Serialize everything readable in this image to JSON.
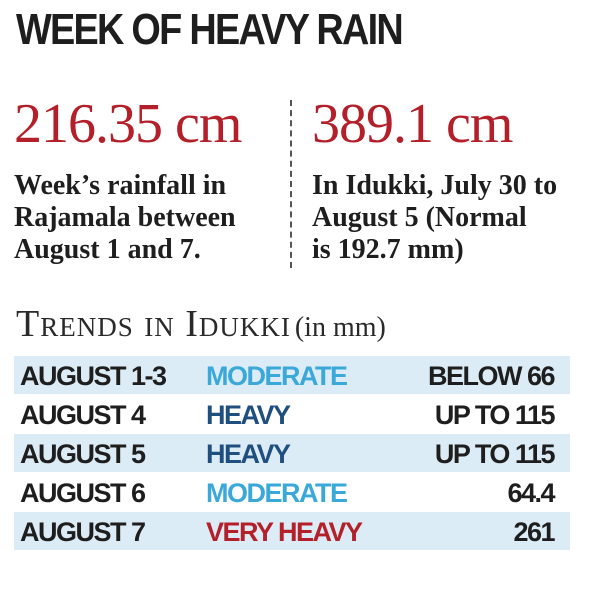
{
  "title": "WEEK OF HEAVY RAIN",
  "stats": [
    {
      "value": "216.35 cm",
      "lines": [
        "Week’s rainfall in",
        "Rajamala between",
        "August 1 and 7."
      ]
    },
    {
      "value": "389.1 cm",
      "lines": [
        "In Idukki, July 30 to",
        "August 5 (Normal",
        "is 192.7 mm)"
      ]
    }
  ],
  "trends": {
    "heading": "Trends in Idukki",
    "unit": "(in mm)",
    "rows": [
      {
        "date": "AUGUST 1-3",
        "level": "MODERATE",
        "amount": "BELOW 66"
      },
      {
        "date": "AUGUST 4",
        "level": "HEAVY",
        "amount": "UP TO 115"
      },
      {
        "date": "AUGUST 5",
        "level": "HEAVY",
        "amount": "UP TO 115"
      },
      {
        "date": "AUGUST 6",
        "level": "MODERATE",
        "amount": "64.4"
      },
      {
        "date": "AUGUST 7",
        "level": "VERY HEAVY",
        "amount": "261"
      }
    ]
  },
  "colors": {
    "stat_value": "#b3202a",
    "row_shade": "#dcecf6",
    "moderate": "#3aa8d8",
    "heavy": "#1f4f7f",
    "very_heavy": "#b3202a"
  }
}
